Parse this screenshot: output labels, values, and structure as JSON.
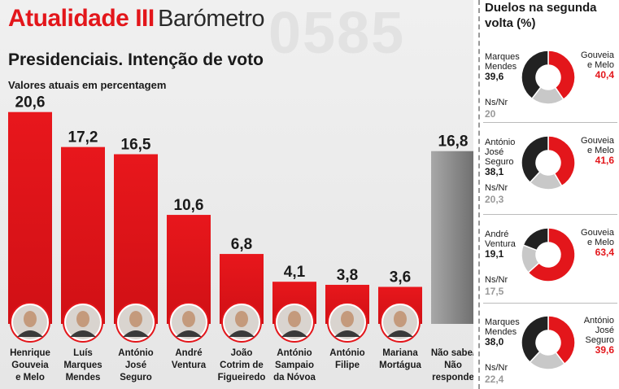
{
  "header": {
    "brand": "Atualidade III",
    "section": "Barómetro",
    "watermark": "0585"
  },
  "chart_data": {
    "type": "bar",
    "title": "Presidenciais. Intenção de voto",
    "subtitle": "Valores atuais em percentagem",
    "categories": [
      "Henrique Gouveia e Melo",
      "Luís Marques Mendes",
      "António José Seguro",
      "André Ventura",
      "João Cotrim de Figueiredo",
      "António Sampaio da Nóvoa",
      "António Filipe",
      "Mariana Mortágua",
      "Não sabe/ Não responde"
    ],
    "label_lines": [
      [
        "Henrique",
        "Gouveia",
        "e Melo"
      ],
      [
        "Luís",
        "Marques",
        "Mendes"
      ],
      [
        "António",
        "José",
        "Seguro"
      ],
      [
        "André",
        "Ventura"
      ],
      [
        "João",
        "Cotrim de",
        "Figueiredo"
      ],
      [
        "António",
        "Sampaio",
        "da Nóvoa"
      ],
      [
        "António",
        "Filipe"
      ],
      [
        "Mariana",
        "Mortágua"
      ],
      [
        "Não sabe/",
        "Não",
        "responde"
      ]
    ],
    "values": [
      20.6,
      17.2,
      16.5,
      10.6,
      6.8,
      4.1,
      3.8,
      3.6,
      16.8
    ],
    "value_labels": [
      "20,6",
      "17,2",
      "16,5",
      "10,6",
      "6,8",
      "4,1",
      "3,8",
      "3,6",
      "16,8"
    ],
    "has_photo": [
      true,
      true,
      true,
      true,
      true,
      true,
      true,
      true,
      false
    ],
    "colors": {
      "candidate": "#e3161b",
      "undecided": "#9a9a9a"
    },
    "ylim": [
      0,
      22
    ]
  },
  "duels": {
    "title_lines": [
      "Duelos na segunda",
      "volta (%)"
    ],
    "ns_label": "Ns/Nr",
    "colors": {
      "black": "#222222",
      "red": "#e3161b",
      "gray": "#c8c8c8"
    },
    "items": [
      {
        "left_name": [
          "Marques",
          "Mendes"
        ],
        "left_value": "39,6",
        "right_name": [
          "Gouveia",
          "e Melo"
        ],
        "right_value": "40,4",
        "ns_value": "20",
        "values": {
          "left": 39.6,
          "right": 40.4,
          "ns": 20
        }
      },
      {
        "left_name": [
          "António",
          "José",
          "Seguro"
        ],
        "left_value": "38,1",
        "right_name": [
          "Gouveia",
          "e Melo"
        ],
        "right_value": "41,6",
        "ns_value": "20,3",
        "values": {
          "left": 38.1,
          "right": 41.6,
          "ns": 20.3
        }
      },
      {
        "left_name": [
          "André",
          "Ventura"
        ],
        "left_value": "19,1",
        "right_name": [
          "Gouveia",
          "e Melo"
        ],
        "right_value": "63,4",
        "ns_value": "17,5",
        "values": {
          "left": 19.1,
          "right": 63.4,
          "ns": 17.5
        }
      },
      {
        "left_name": [
          "Marques",
          "Mendes"
        ],
        "left_value": "38,0",
        "right_name": [
          "António",
          "José",
          "Seguro"
        ],
        "right_value": "39,6",
        "ns_value": "22,4",
        "values": {
          "left": 38.0,
          "right": 39.6,
          "ns": 22.4
        }
      }
    ]
  }
}
